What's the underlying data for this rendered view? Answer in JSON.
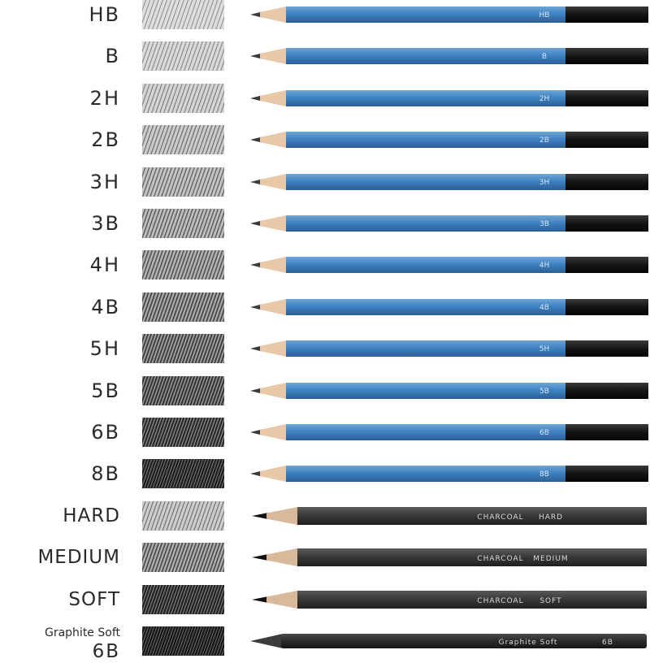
{
  "swatch_color": "#141414",
  "pencils": [
    {
      "label": "HB",
      "style": "blue",
      "grade_mark": "HB",
      "darkness": 0.18
    },
    {
      "label": "B",
      "style": "blue",
      "grade_mark": "B",
      "darkness": 0.22
    },
    {
      "label": "2H",
      "style": "blue",
      "grade_mark": "2H",
      "darkness": 0.26
    },
    {
      "label": "2B",
      "style": "blue",
      "grade_mark": "2B",
      "darkness": 0.32
    },
    {
      "label": "3H",
      "style": "blue",
      "grade_mark": "3H",
      "darkness": 0.38
    },
    {
      "label": "3B",
      "style": "blue",
      "grade_mark": "3B",
      "darkness": 0.44
    },
    {
      "label": "4H",
      "style": "blue",
      "grade_mark": "4H",
      "darkness": 0.5
    },
    {
      "label": "4B",
      "style": "blue",
      "grade_mark": "4B",
      "darkness": 0.58
    },
    {
      "label": "5H",
      "style": "blue",
      "grade_mark": "5H",
      "darkness": 0.66
    },
    {
      "label": "5B",
      "style": "blue",
      "grade_mark": "5B",
      "darkness": 0.74
    },
    {
      "label": "6B",
      "style": "blue",
      "grade_mark": "6B",
      "darkness": 0.84
    },
    {
      "label": "8B",
      "style": "blue",
      "grade_mark": "8B",
      "darkness": 0.94
    },
    {
      "label": "HARD",
      "style": "charcoal",
      "brand": "CHARCOAL",
      "grade_mark": "HARD",
      "darkness": 0.3
    },
    {
      "label": "MEDIUM",
      "style": "charcoal",
      "brand": "CHARCOAL",
      "grade_mark": "MEDIUM",
      "darkness": 0.55
    },
    {
      "label": "SOFT",
      "style": "charcoal",
      "brand": "CHARCOAL",
      "grade_mark": "SOFT",
      "darkness": 0.9
    },
    {
      "label_line1": "Graphite Soft",
      "label_line2": "6B",
      "style": "graphite",
      "brand": "Graphite Soft",
      "grade_mark": "6B",
      "darkness": 1.0
    }
  ]
}
